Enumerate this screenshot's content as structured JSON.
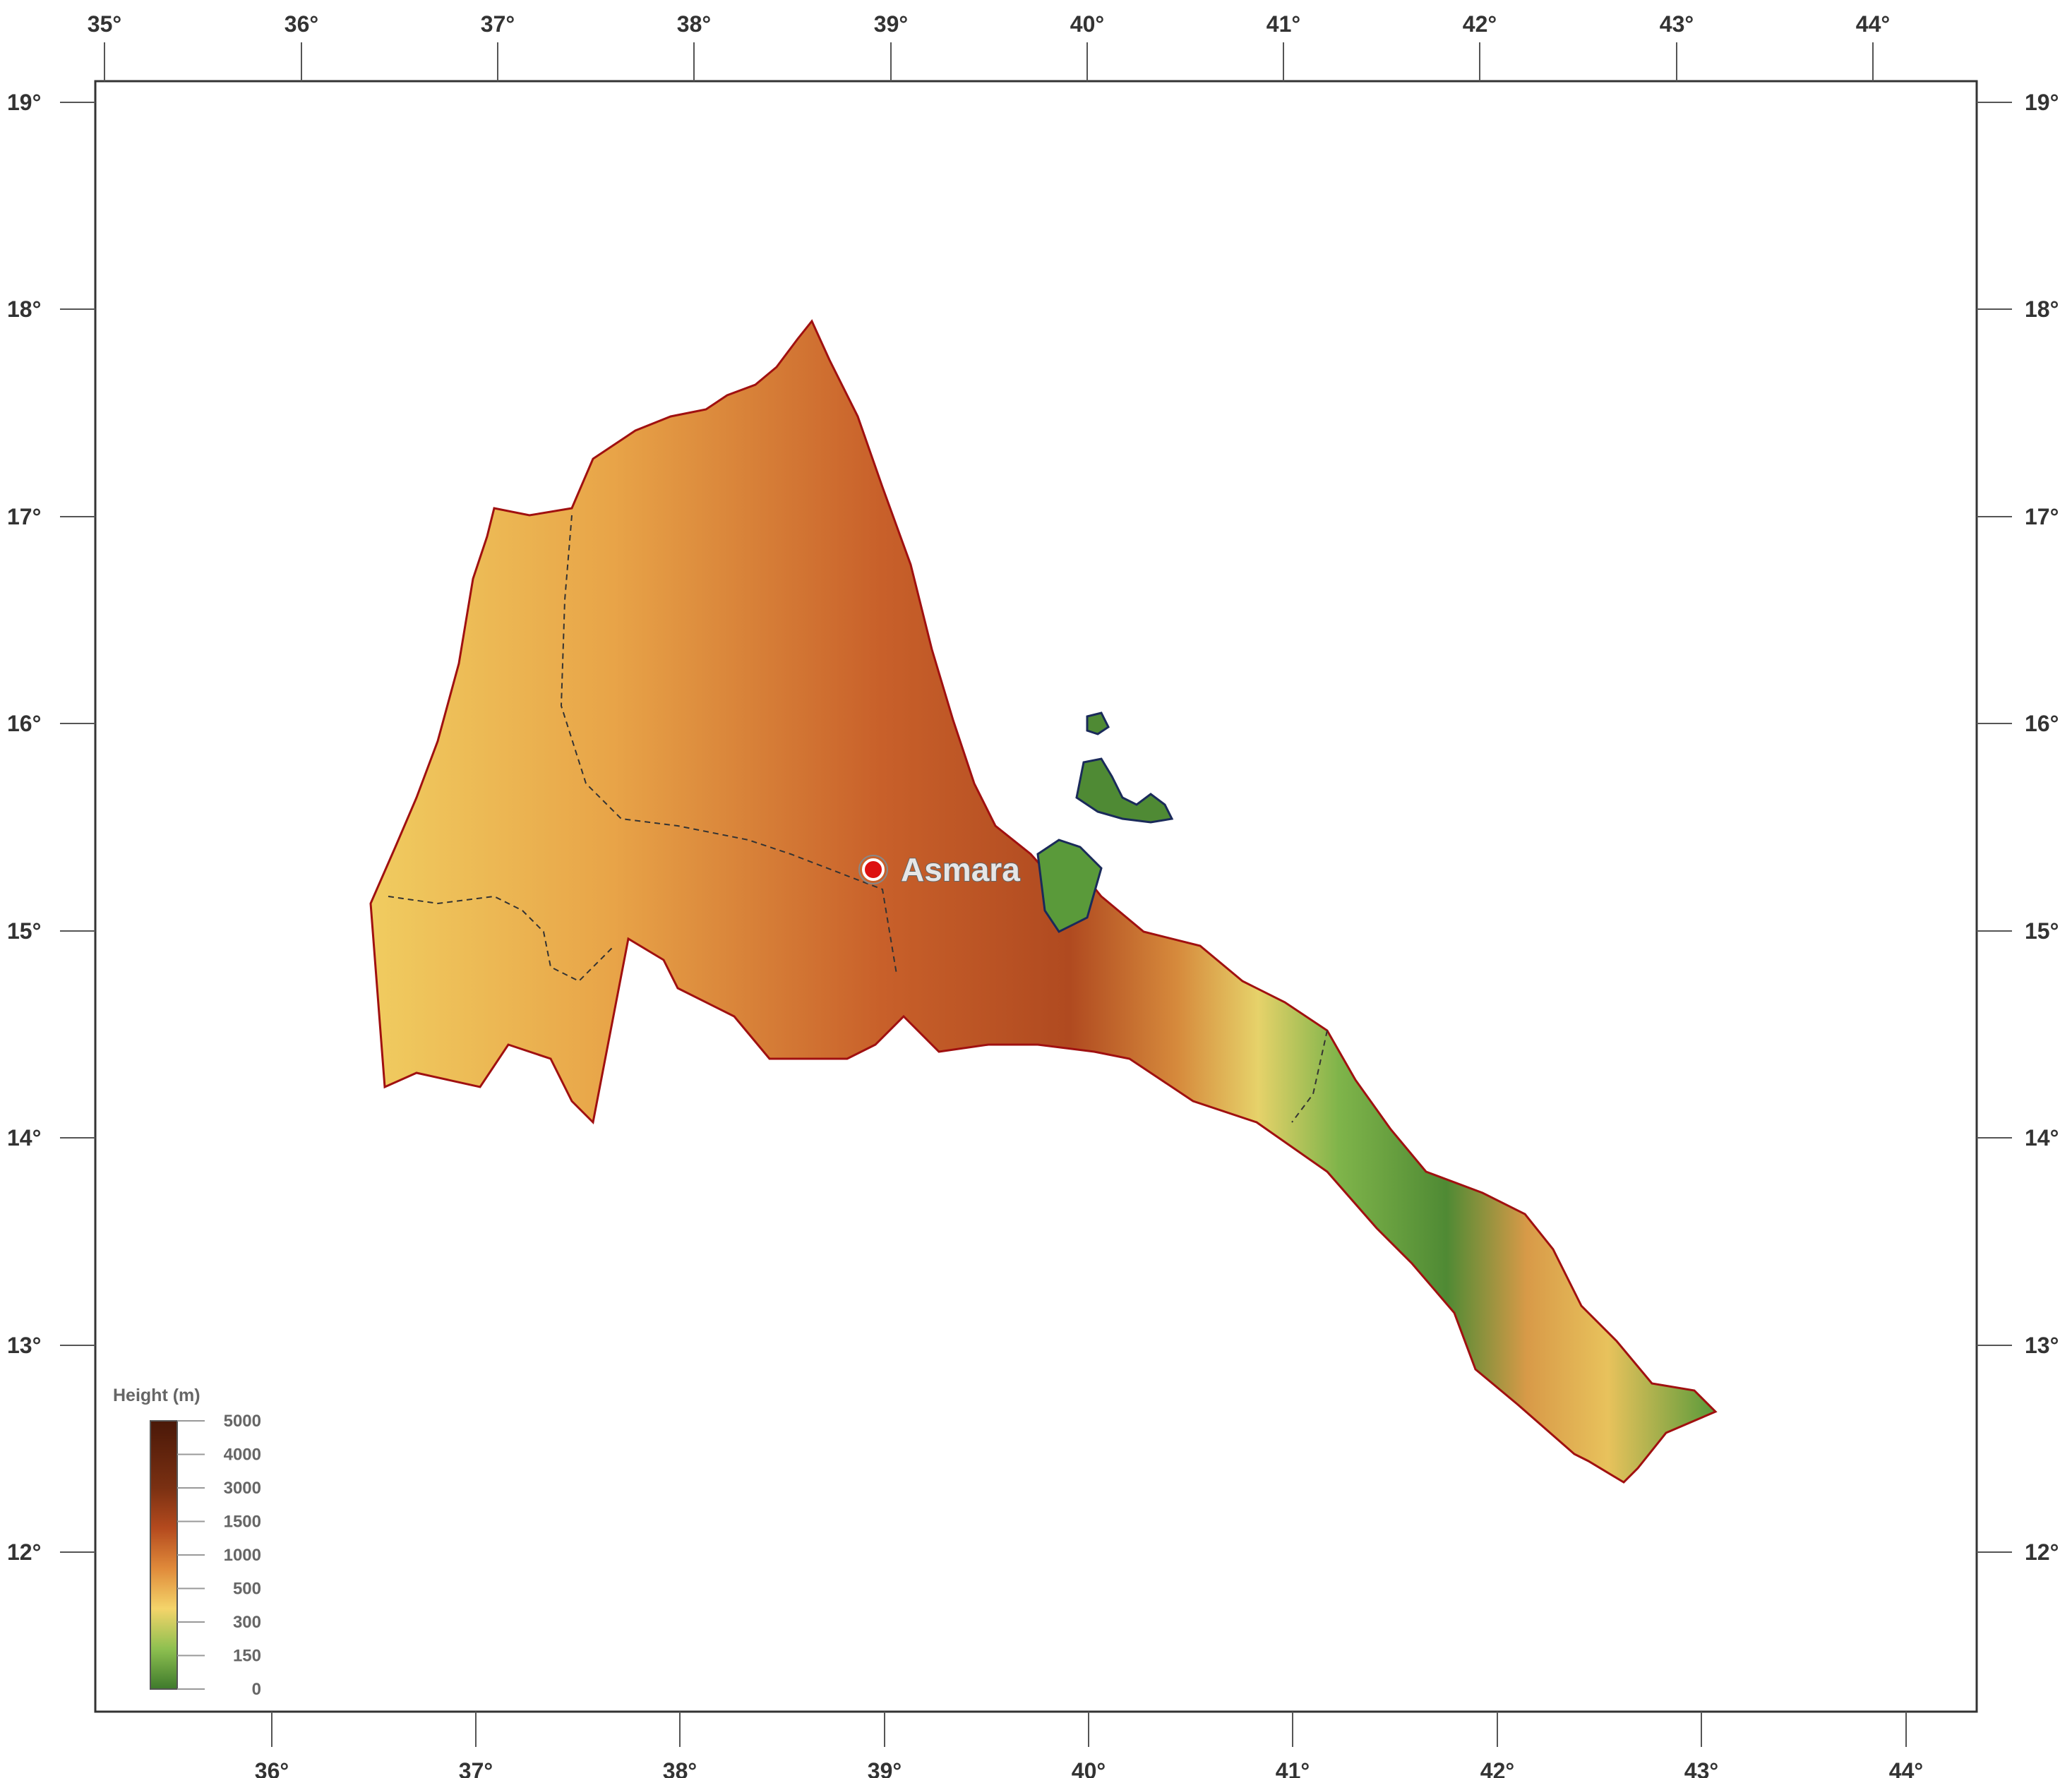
{
  "map": {
    "top_axis_labels": [
      "35°",
      "36°",
      "37°",
      "38°",
      "39°",
      "40°",
      "41°",
      "42°",
      "43°",
      "44°"
    ],
    "bottom_axis_labels": [
      "36°",
      "37°",
      "38°",
      "39°",
      "40°",
      "41°",
      "42°",
      "43°",
      "44°"
    ],
    "left_axis_labels": [
      "19°",
      "18°",
      "17°",
      "16°",
      "15°",
      "14°",
      "13°",
      "12°"
    ],
    "right_axis_labels": [
      "19°",
      "18°",
      "17°",
      "16°",
      "15°",
      "14°",
      "13°",
      "12°"
    ],
    "city": {
      "name": "Asmara",
      "marker_color": "#dd1111"
    },
    "legend": {
      "title": "Height  (m)",
      "labels": [
        "5000",
        "4000",
        "3000",
        "1500",
        "1000",
        "500",
        "300",
        "150",
        "0"
      ]
    },
    "colors": {
      "lowland": "#4f8a34",
      "mid": "#f2d36a",
      "high": "#c8602a",
      "peak": "#6a2a10",
      "border": "#a01010",
      "coast": "#1a2a5a"
    }
  }
}
